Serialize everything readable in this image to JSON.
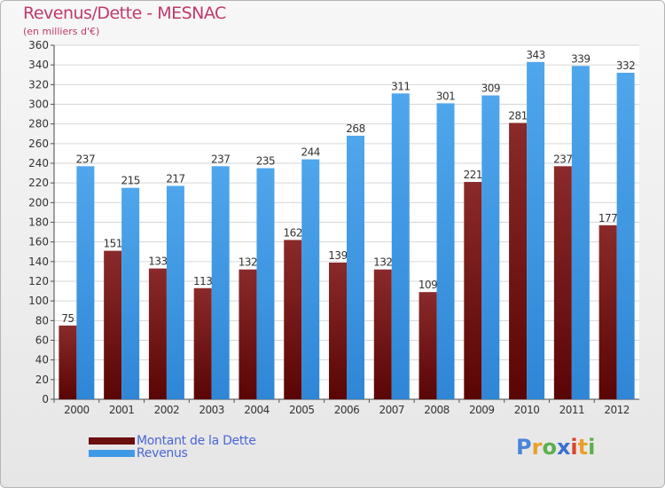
{
  "header": {
    "title": "Revenus/Dette - MESNAC",
    "subtitle": "(en milliers d'€)"
  },
  "colors": {
    "dette": "#7a1a1a",
    "revenus": "#3f9ae6",
    "title": "#c0396a",
    "legend_text": "#4a66d6"
  },
  "legend": {
    "items": [
      {
        "label": "Montant de la Dette",
        "color": "#6b0f0f"
      },
      {
        "label": "Revenus",
        "color": "#3f9ae6"
      }
    ]
  },
  "logo": {
    "text": "Proxiti",
    "letters": [
      {
        "ch": "P",
        "color": "#4a86d8"
      },
      {
        "ch": "r",
        "color": "#e8a02a"
      },
      {
        "ch": "o",
        "color": "#5bb04a"
      },
      {
        "ch": "x",
        "color": "#3a6fd0"
      },
      {
        "ch": "i",
        "color": "#d9452c"
      },
      {
        "ch": "t",
        "color": "#e8a02a"
      },
      {
        "ch": "i",
        "color": "#5bb04a"
      }
    ]
  },
  "chart_data": {
    "type": "bar",
    "title": "Revenus/Dette - MESNAC",
    "subtitle": "(en milliers d'€)",
    "categories": [
      "2000",
      "2001",
      "2002",
      "2003",
      "2004",
      "2005",
      "2006",
      "2007",
      "2008",
      "2009",
      "2010",
      "2011",
      "2012"
    ],
    "series": [
      {
        "name": "Montant de la Dette",
        "values": [
          75,
          151,
          133,
          113,
          132,
          162,
          139,
          132,
          109,
          221,
          281,
          237,
          177
        ]
      },
      {
        "name": "Revenus",
        "values": [
          237,
          215,
          217,
          237,
          235,
          244,
          268,
          311,
          301,
          309,
          343,
          339,
          332
        ]
      }
    ],
    "ylim": [
      0,
      360
    ],
    "yticks": [
      0,
      20,
      40,
      60,
      80,
      100,
      120,
      140,
      160,
      180,
      200,
      220,
      240,
      260,
      280,
      300,
      320,
      340,
      360
    ],
    "grid": true,
    "legend_position": "bottom-left",
    "data_labels": true
  }
}
